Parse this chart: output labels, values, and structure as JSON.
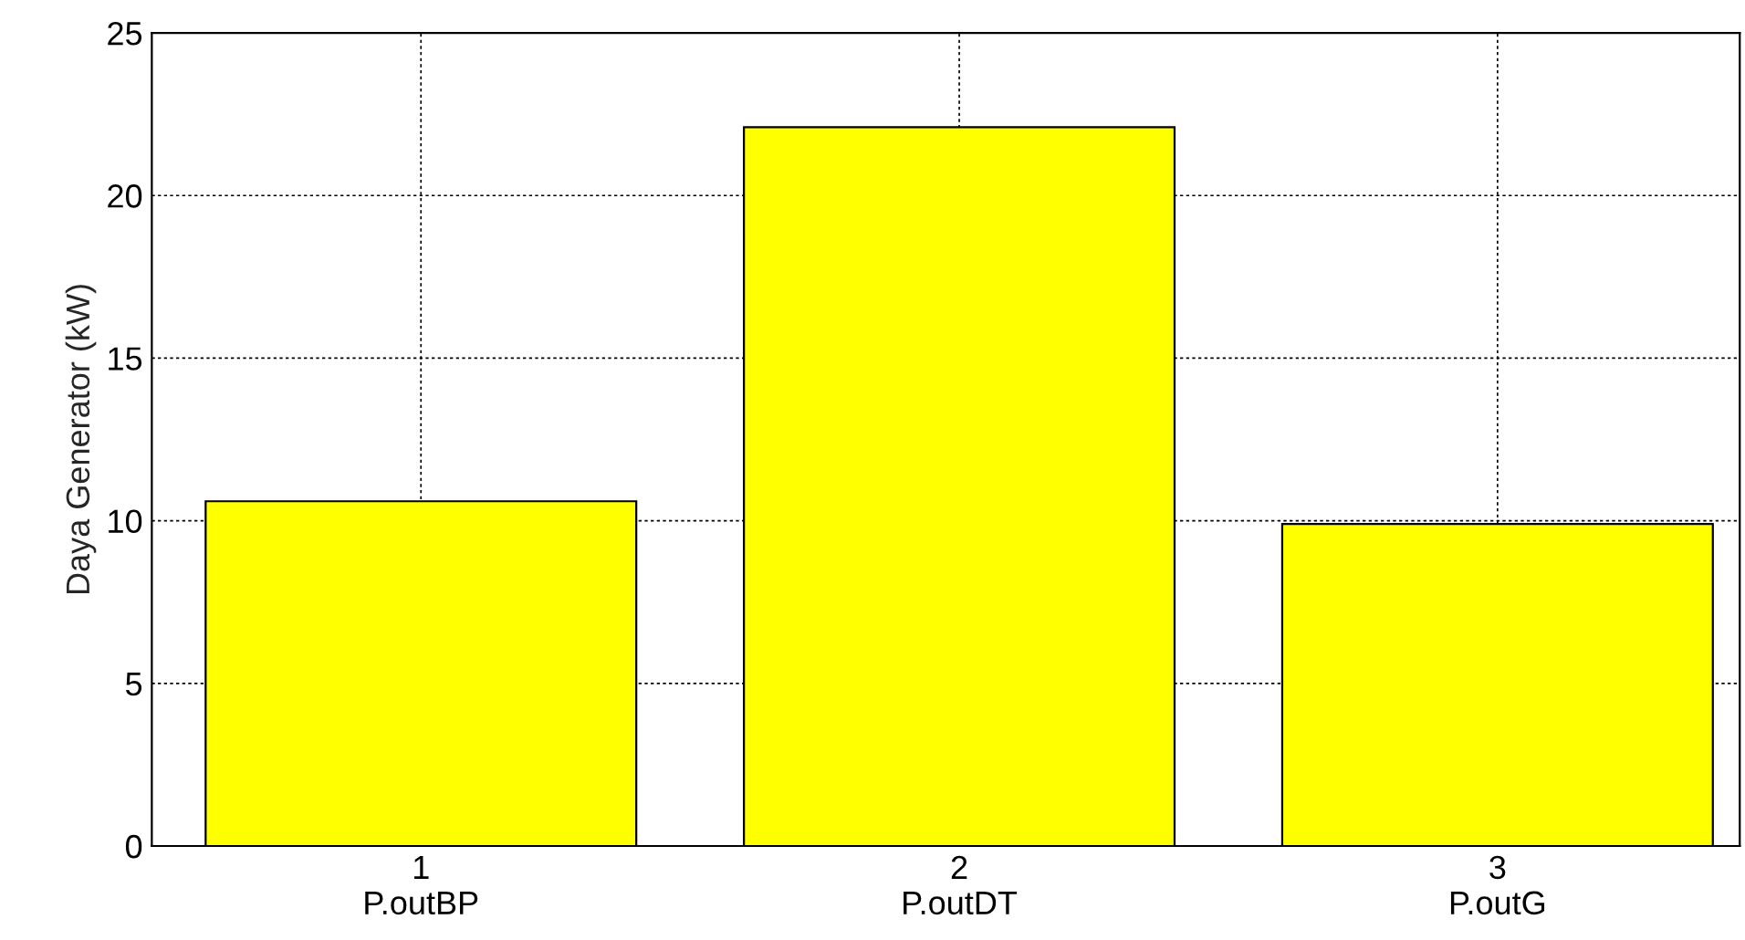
{
  "chart_data": {
    "type": "bar",
    "ylabel": "Daya Generator (kW)",
    "x": [
      1,
      2,
      3
    ],
    "values": [
      10.6,
      22.1,
      9.9
    ],
    "color": "#ffff00",
    "xlim": [
      0.5,
      3.45
    ],
    "xticks": [
      {
        "value": 1,
        "label": "1\nP.outBP"
      },
      {
        "value": 2,
        "label": "2\nP.outDT"
      },
      {
        "value": 3,
        "label": "3\nP.outG"
      }
    ],
    "ylim": [
      0,
      25
    ],
    "yticks": [
      0,
      5,
      10,
      15,
      20,
      25
    ],
    "grid": true
  }
}
